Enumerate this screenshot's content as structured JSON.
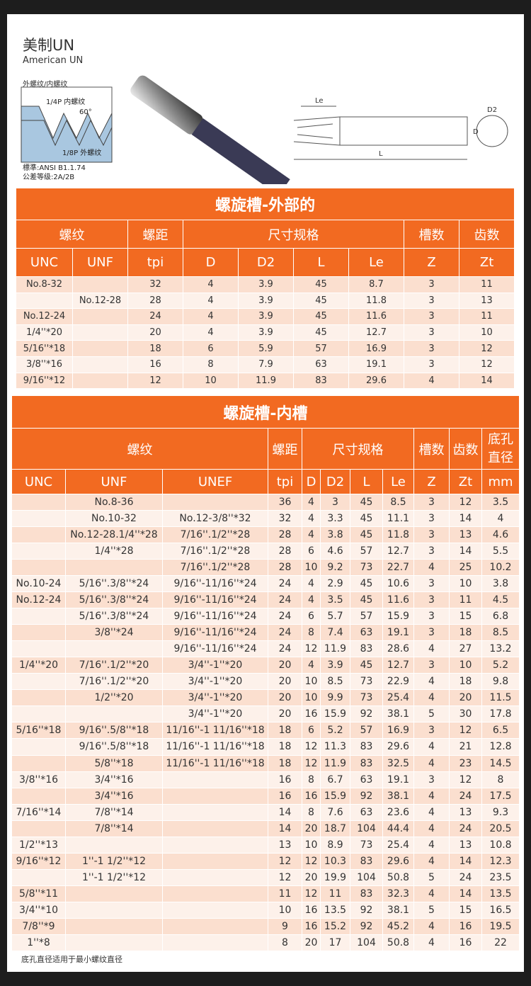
{
  "header": {
    "title": "美制UN",
    "subtitle": "American UN",
    "caption": "外螺纹/内螺纹",
    "diagram_labels": [
      "1/4P 内螺纹",
      "60°",
      "1/8P 外螺纹"
    ],
    "standard": "標準:ANSI B1.1.74",
    "tolerance": "公差等级:2A/2B",
    "drawing_labels": [
      "Le",
      "D2",
      "D",
      "L"
    ]
  },
  "tables": [
    {
      "title": "螺旋槽-外部的",
      "group_headers": [
        "螺纹",
        "螺距",
        "尺寸规格",
        "槽数",
        "齿数"
      ],
      "columns": [
        "UNC",
        "UNF",
        "tpi",
        "D",
        "D2",
        "L",
        "Le",
        "Z",
        "Zt"
      ],
      "rows": [
        [
          "No.8-32",
          null,
          32,
          4,
          3.9,
          45,
          8.7,
          3,
          11
        ],
        [
          null,
          "No.12-28",
          28,
          4,
          3.9,
          45,
          11.8,
          3,
          13
        ],
        [
          "No.12-24",
          null,
          24,
          4,
          3.9,
          45,
          11.6,
          3,
          11
        ],
        [
          "1/4''*20",
          null,
          20,
          4,
          3.9,
          45,
          12.7,
          3,
          10
        ],
        [
          "5/16''*18",
          null,
          18,
          6,
          5.9,
          57,
          16.9,
          3,
          12
        ],
        [
          "3/8''*16",
          null,
          16,
          8,
          7.9,
          63,
          19.1,
          3,
          12
        ],
        [
          "9/16''*12",
          null,
          12,
          10,
          11.9,
          83,
          29.6,
          4,
          14
        ]
      ]
    },
    {
      "title": "螺旋槽-内槽",
      "group_headers": [
        "螺纹",
        "螺距",
        "尺寸规格",
        "槽数",
        "齿数",
        "底孔直径"
      ],
      "columns": [
        "UNC",
        "UNF",
        "UNEF",
        "tpi",
        "D",
        "D2",
        "L",
        "Le",
        "Z",
        "Zt",
        "mm"
      ],
      "rows": [
        [
          null,
          "No.8-36",
          null,
          36,
          4,
          3,
          45,
          8.5,
          3,
          12,
          3.5
        ],
        [
          null,
          "No.10-32",
          "No.12-3/8''*32",
          32,
          4,
          3.3,
          45,
          11.1,
          3,
          14,
          4
        ],
        [
          null,
          "No.12-28.1/4''*28",
          "7/16''.1/2''*28",
          28,
          4,
          3.8,
          45,
          11.8,
          3,
          13,
          4.6
        ],
        [
          null,
          "1/4''*28",
          "7/16''.1/2''*28",
          28,
          6,
          4.6,
          57,
          12.7,
          3,
          14,
          5.5
        ],
        [
          null,
          null,
          "7/16''.1/2''*28",
          28,
          10,
          9.2,
          73,
          22.7,
          4,
          25,
          10.2
        ],
        [
          "No.10-24",
          "5/16''.3/8''*24",
          "9/16''-11/16''*24",
          24,
          4,
          2.9,
          45,
          10.6,
          3,
          10,
          3.8
        ],
        [
          "No.12-24",
          "5/16''.3/8''*24",
          "9/16''-11/16''*24",
          24,
          4,
          3.5,
          45,
          11.6,
          3,
          11,
          4.5
        ],
        [
          null,
          "5/16''.3/8''*24",
          "9/16''-11/16''*24",
          24,
          6,
          5.7,
          57,
          15.9,
          3,
          15,
          6.8
        ],
        [
          null,
          "3/8''*24",
          "9/16''-11/16''*24",
          24,
          8,
          7.4,
          63,
          19.1,
          3,
          18,
          8.5
        ],
        [
          null,
          null,
          "9/16''-11/16''*24",
          24,
          12,
          11.9,
          83,
          28.6,
          4,
          27,
          13.2
        ],
        [
          "1/4''*20",
          "7/16''.1/2''*20",
          "3/4''-1''*20",
          20,
          4,
          3.9,
          45,
          12.7,
          3,
          10,
          5.2
        ],
        [
          null,
          "7/16''.1/2''*20",
          "3/4''-1''*20",
          20,
          10,
          8.5,
          73,
          22.9,
          4,
          18,
          9.8
        ],
        [
          null,
          "1/2''*20",
          "3/4''-1''*20",
          20,
          10,
          9.9,
          73,
          25.4,
          4,
          20,
          11.5
        ],
        [
          null,
          null,
          "3/4''-1''*20",
          20,
          16,
          15.9,
          92,
          38.1,
          5,
          30,
          17.8
        ],
        [
          "5/16''*18",
          "9/16''.5/8''*18",
          "11/16''-1 11/16''*18",
          18,
          6,
          5.2,
          57,
          16.9,
          3,
          12,
          6.5
        ],
        [
          null,
          "9/16''.5/8''*18",
          "11/16''-1 11/16''*18",
          18,
          12,
          11.3,
          83,
          29.6,
          4,
          21,
          12.8
        ],
        [
          null,
          "5/8''*18",
          "11/16''-1 11/16''*18",
          18,
          12,
          11.9,
          83,
          32.5,
          4,
          23,
          14.5
        ],
        [
          "3/8''*16",
          "3/4''*16",
          null,
          16,
          8,
          6.7,
          63,
          19.1,
          3,
          12,
          8
        ],
        [
          null,
          "3/4''*16",
          null,
          16,
          16,
          15.9,
          92,
          38.1,
          4,
          24,
          17.5
        ],
        [
          "7/16''*14",
          "7/8''*14",
          null,
          14,
          8,
          7.6,
          63,
          23.6,
          4,
          13,
          9.3
        ],
        [
          null,
          "7/8''*14",
          null,
          14,
          20,
          18.7,
          104,
          44.4,
          4,
          24,
          20.5
        ],
        [
          "1/2''*13",
          null,
          null,
          13,
          10,
          8.9,
          73,
          25.4,
          4,
          13,
          10.8
        ],
        [
          "9/16''*12",
          "1''-1 1/2''*12",
          null,
          12,
          12,
          10.3,
          83,
          29.6,
          4,
          14,
          12.3
        ],
        [
          null,
          "1''-1 1/2''*12",
          null,
          12,
          20,
          19.9,
          104,
          50.8,
          5,
          24,
          23.5
        ],
        [
          "5/8''*11",
          null,
          null,
          11,
          12,
          11,
          83,
          32.3,
          4,
          14,
          13.5
        ],
        [
          "3/4''*10",
          null,
          null,
          10,
          16,
          13.5,
          92,
          38.1,
          5,
          15,
          16.5
        ],
        [
          "7/8''*9",
          null,
          null,
          9,
          16,
          15.2,
          92,
          45.2,
          4,
          16,
          19.5
        ],
        [
          "1''*8",
          null,
          null,
          8,
          20,
          17,
          104,
          50.8,
          4,
          16,
          22
        ]
      ]
    }
  ],
  "footnote": "底孔直径适用于最小螺纹直径"
}
